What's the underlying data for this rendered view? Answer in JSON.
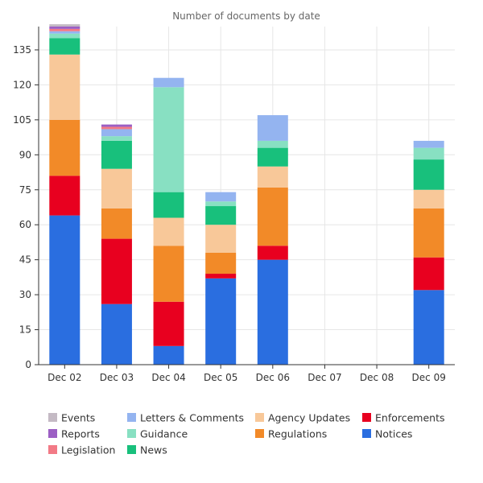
{
  "chart_data": {
    "type": "bar",
    "stacked": true,
    "title": "Number of documents by date",
    "xlabel": "",
    "ylabel": "",
    "categories": [
      "Dec 02",
      "Dec 03",
      "Dec 04",
      "Dec 05",
      "Dec 06",
      "Dec 07",
      "Dec 08",
      "Dec 09"
    ],
    "ylim": [
      0,
      145
    ],
    "yticks": [
      0,
      15,
      30,
      45,
      60,
      75,
      90,
      105,
      120,
      135
    ],
    "grid": true,
    "legend_position": "bottom",
    "series": [
      {
        "name": "Notices",
        "color": "#2a6ee0",
        "values": [
          64,
          26,
          8,
          37,
          45,
          0,
          0,
          32
        ]
      },
      {
        "name": "Enforcements",
        "color": "#e8001f",
        "values": [
          17,
          28,
          19,
          2,
          6,
          0,
          0,
          14
        ]
      },
      {
        "name": "Regulations",
        "color": "#f28a28",
        "values": [
          24,
          13,
          24,
          9,
          25,
          0,
          0,
          21
        ]
      },
      {
        "name": "Agency Updates",
        "color": "#f8c899",
        "values": [
          28,
          17,
          12,
          12,
          9,
          0,
          0,
          8
        ]
      },
      {
        "name": "News",
        "color": "#18c07c",
        "values": [
          7,
          12,
          11,
          8,
          8,
          0,
          0,
          13
        ]
      },
      {
        "name": "Guidance",
        "color": "#88e0c2",
        "values": [
          2,
          2,
          45,
          2,
          3,
          0,
          0,
          5
        ]
      },
      {
        "name": "Letters & Comments",
        "color": "#94b4f0",
        "values": [
          1,
          3,
          4,
          4,
          11,
          0,
          0,
          3
        ]
      },
      {
        "name": "Legislation",
        "color": "#f27a86",
        "values": [
          1,
          1,
          0,
          0,
          0,
          0,
          0,
          0
        ]
      },
      {
        "name": "Reports",
        "color": "#9c5fc4",
        "values": [
          1,
          1,
          0,
          0,
          0,
          0,
          0,
          0
        ]
      },
      {
        "name": "Events",
        "color": "#c4bac4",
        "values": [
          1,
          0,
          0,
          0,
          0,
          0,
          0,
          0
        ]
      }
    ],
    "legend_order": [
      "Events",
      "Letters & Comments",
      "Agency Updates",
      "Enforcements",
      "Reports",
      "Guidance",
      "Regulations",
      "Notices",
      "Legislation",
      "News"
    ]
  }
}
